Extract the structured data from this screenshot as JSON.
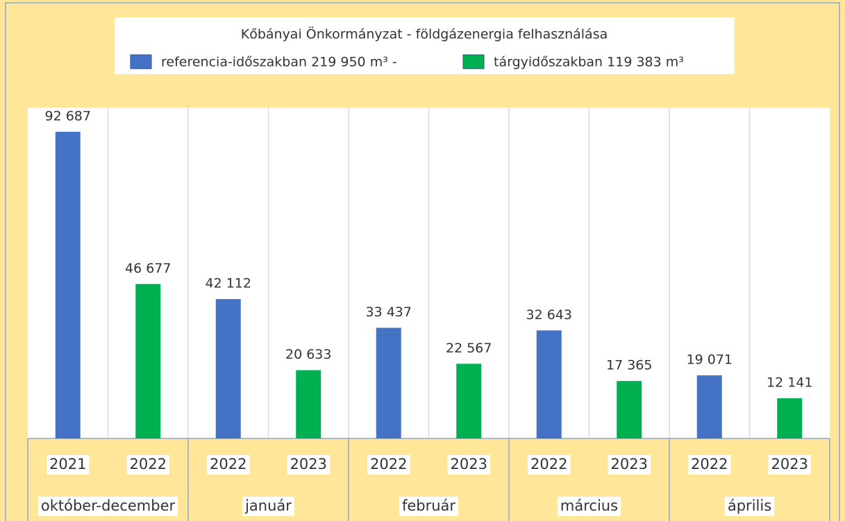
{
  "chart_data": {
    "type": "bar",
    "title": "Kőbányai Önkormányzat - földgázenergia felhasználása",
    "categories": [
      "október-december",
      "január",
      "február",
      "március",
      "április"
    ],
    "series": [
      {
        "name": "referencia-időszakban 219 950 m³ -",
        "color": "#4472c4",
        "years": [
          "2021",
          "2022",
          "2022",
          "2022",
          "2022"
        ],
        "values": [
          92687,
          42112,
          33437,
          32643,
          19071
        ],
        "value_labels": [
          "92 687",
          "42 112",
          "33 437",
          "32 643",
          "19 071"
        ]
      },
      {
        "name": "tárgyidőszakban 119 383 m³",
        "color": "#00b050",
        "years": [
          "2022",
          "2023",
          "2023",
          "2023",
          "2023"
        ],
        "values": [
          46677,
          20633,
          22567,
          17365,
          12141
        ],
        "value_labels": [
          "46 677",
          "20 633",
          "22 567",
          "17 365",
          "12 141"
        ]
      }
    ],
    "ylim": [
      0,
      100000
    ],
    "grid": true
  }
}
